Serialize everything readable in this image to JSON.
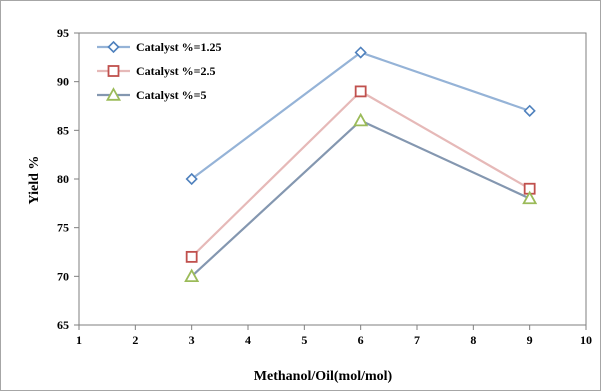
{
  "chart_data": {
    "type": "line",
    "xlabel": "Methanol/Oil(mol/mol)",
    "ylabel": "Yield %",
    "xlim": [
      1,
      10
    ],
    "ylim": [
      65,
      95
    ],
    "xticks": [
      1,
      2,
      3,
      4,
      5,
      6,
      7,
      8,
      9,
      10
    ],
    "yticks": [
      65,
      70,
      75,
      80,
      85,
      90,
      95
    ],
    "grid": false,
    "legend_position": "top-left",
    "x": [
      3,
      6,
      9
    ],
    "series": [
      {
        "name": "Catalyst %=1.25",
        "values": [
          80,
          93,
          87
        ],
        "color": "#95b3d7",
        "marker": "diamond",
        "marker_color": "#4f81bd"
      },
      {
        "name": "Catalyst %=2.5",
        "values": [
          72,
          89,
          79
        ],
        "color": "#e6b9b8",
        "marker": "square",
        "marker_color": "#c0504d"
      },
      {
        "name": "Catalyst %=5",
        "values": [
          70,
          86,
          78
        ],
        "color": "#8497b0",
        "marker": "triangle",
        "marker_color": "#9bbb59"
      }
    ]
  }
}
